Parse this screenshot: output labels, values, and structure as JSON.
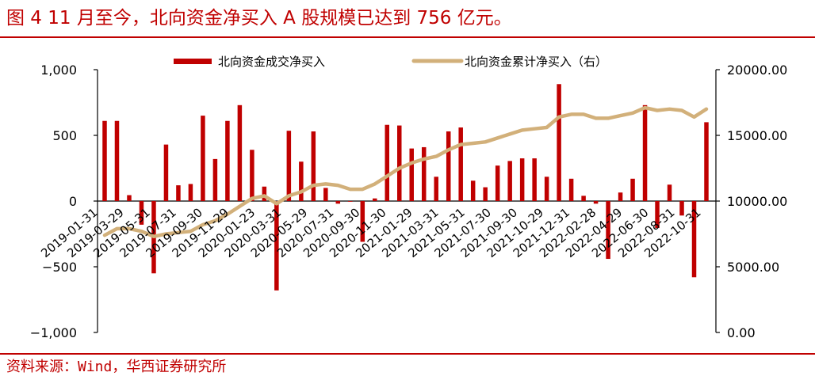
{
  "header": {
    "title": "图 4 11 月至今，北向资金净买入 A 股规模已达到 756 亿元。"
  },
  "footer": {
    "source": "资料来源：Wind，华西证券研究所"
  },
  "colors": {
    "bar": "#c00000",
    "line": "#d2b07a",
    "accent": "#c00000"
  },
  "chart_data": {
    "type": "bar+line",
    "legend_position": "top-center",
    "grid": false,
    "left_axis": {
      "range": [
        -1000,
        1000
      ],
      "ticks": [
        -1000,
        -500,
        0,
        500,
        1000
      ],
      "tick_labels": [
        "−1,000",
        "−500",
        "0",
        "500",
        "1,000"
      ]
    },
    "right_axis": {
      "range": [
        0,
        20000
      ],
      "ticks": [
        0,
        5000,
        10000,
        15000,
        20000
      ],
      "tick_labels": [
        "0.00",
        "5000.00",
        "10000.00",
        "15000.00",
        "20000.00"
      ]
    },
    "x_tick_labels": [
      "2019-01-31",
      "2019-03-29",
      "2019-05-31",
      "2019-07-31",
      "2019-09-30",
      "2019-11-29",
      "2020-01-23",
      "2020-03-31",
      "2020-05-29",
      "2020-07-31",
      "2020-09-30",
      "2020-11-30",
      "2021-01-29",
      "2021-03-31",
      "2021-05-31",
      "2021-07-30",
      "2021-09-30",
      "2021-10-29",
      "2021-12-31",
      "2022-02-28",
      "2022-04-29",
      "2022-06-30",
      "2022-08-31",
      "2022-10-31"
    ],
    "series": [
      {
        "name": "北向资金成交净买入",
        "type": "bar",
        "axis": "left",
        "values": [
          610,
          610,
          45,
          -180,
          -550,
          430,
          120,
          130,
          650,
          320,
          610,
          730,
          390,
          110,
          -680,
          535,
          300,
          530,
          100,
          -20,
          -5,
          -310,
          20,
          580,
          575,
          400,
          410,
          185,
          530,
          560,
          155,
          105,
          270,
          305,
          325,
          325,
          185,
          890,
          170,
          40,
          -20,
          -440,
          65,
          170,
          730,
          -205,
          125,
          -110,
          -580,
          600
        ]
      },
      {
        "name": "北向资金累计净买入（右）",
        "type": "line",
        "axis": "right",
        "values": [
          7400,
          7900,
          7900,
          7700,
          7300,
          7500,
          7600,
          7700,
          8200,
          8500,
          9000,
          9600,
          10200,
          10400,
          9800,
          10400,
          10700,
          11200,
          11300,
          11200,
          10900,
          10900,
          11300,
          11900,
          12500,
          12900,
          13200,
          13400,
          13900,
          14300,
          14400,
          14500,
          14800,
          15100,
          15400,
          15500,
          15600,
          16400,
          16600,
          16600,
          16300,
          16300,
          16500,
          16700,
          17100,
          16900,
          17000,
          16900,
          16400,
          17000
        ]
      }
    ]
  }
}
